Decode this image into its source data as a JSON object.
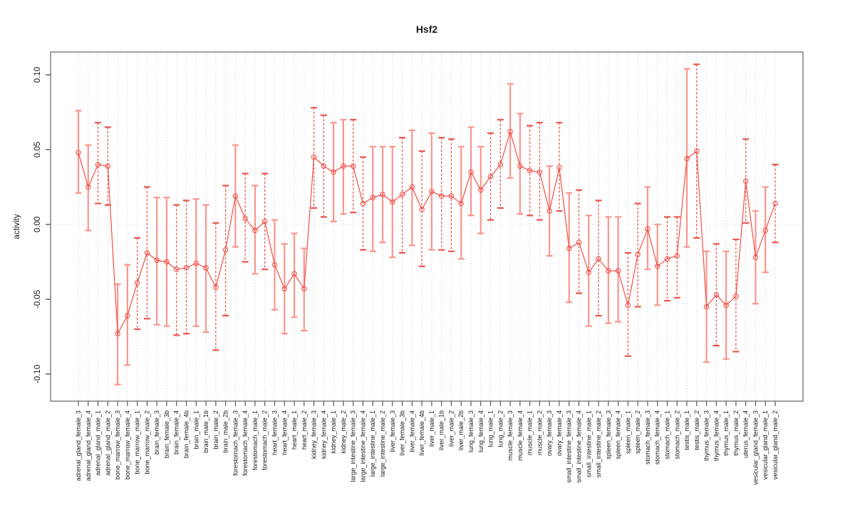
{
  "chart_data": {
    "type": "line",
    "title": "Hsf2",
    "ylabel": "activity",
    "xlabel": "",
    "ylim": [
      -0.117,
      0.115
    ],
    "yticks": [
      0.1,
      0.05,
      0.0,
      -0.05,
      -0.1
    ],
    "ytick_labels": [
      "0.10",
      "0.05",
      "0.00",
      "-0.05",
      "-0.10"
    ],
    "grid": "vertical-dotted-per-category",
    "zero_line_dotted": true,
    "legend": "none",
    "colors": {
      "point_and_line": "#ef4f48",
      "errorbar_solid": "#f9968e",
      "errorbar_dashed": "#e8564e",
      "gridline": "#cccccc",
      "zero_line": "#cfcfcf",
      "box": "#8a8a8a",
      "tick": "#4d4d4d",
      "text": "#1a1a1a",
      "background": "#ffffff"
    },
    "points": [
      {
        "label": "adrenal_gland_female_3",
        "value": 0.048,
        "lo": 0.021,
        "hi": 0.076,
        "dashed": false
      },
      {
        "label": "adrenal_gland_female_4",
        "value": 0.025,
        "lo": -0.004,
        "hi": 0.053,
        "dashed": false
      },
      {
        "label": "adrenal_gland_male_1",
        "value": 0.04,
        "lo": 0.014,
        "hi": 0.068,
        "dashed": true
      },
      {
        "label": "adrenal_gland_male_2",
        "value": 0.039,
        "lo": 0.013,
        "hi": 0.065,
        "dashed": true
      },
      {
        "label": "bone_marrow_female_3",
        "value": -0.073,
        "lo": -0.107,
        "hi": -0.04,
        "dashed": false
      },
      {
        "label": "bone_marrow_female_4",
        "value": -0.061,
        "lo": -0.094,
        "hi": -0.027,
        "dashed": false
      },
      {
        "label": "bone_marrow_male_1",
        "value": -0.039,
        "lo": -0.07,
        "hi": -0.009,
        "dashed": true
      },
      {
        "label": "bone_marrow_male_2",
        "value": -0.019,
        "lo": -0.063,
        "hi": 0.025,
        "dashed": true
      },
      {
        "label": "brain_female_3",
        "value": -0.024,
        "lo": -0.067,
        "hi": 0.018,
        "dashed": false
      },
      {
        "label": "brain_female_3b",
        "value": -0.025,
        "lo": -0.068,
        "hi": 0.018,
        "dashed": false
      },
      {
        "label": "brain_female_4",
        "value": -0.03,
        "lo": -0.074,
        "hi": 0.013,
        "dashed": true
      },
      {
        "label": "brain_female_4b",
        "value": -0.029,
        "lo": -0.073,
        "hi": 0.016,
        "dashed": true
      },
      {
        "label": "brain_male_1",
        "value": -0.026,
        "lo": -0.068,
        "hi": 0.017,
        "dashed": false
      },
      {
        "label": "brain_male_1b",
        "value": -0.029,
        "lo": -0.072,
        "hi": 0.013,
        "dashed": false
      },
      {
        "label": "brain_male_2",
        "value": -0.042,
        "lo": -0.084,
        "hi": 0.001,
        "dashed": true
      },
      {
        "label": "brain_male_2b",
        "value": -0.017,
        "lo": -0.061,
        "hi": 0.026,
        "dashed": true
      },
      {
        "label": "forestomach_female_3",
        "value": 0.019,
        "lo": -0.015,
        "hi": 0.053,
        "dashed": false
      },
      {
        "label": "forestomach_female_4",
        "value": 0.004,
        "lo": -0.025,
        "hi": 0.034,
        "dashed": true
      },
      {
        "label": "forestomach_male_1",
        "value": -0.004,
        "lo": -0.033,
        "hi": 0.026,
        "dashed": false
      },
      {
        "label": "forestomach_male_2",
        "value": 0.002,
        "lo": -0.03,
        "hi": 0.034,
        "dashed": true
      },
      {
        "label": "heart_female_3",
        "value": -0.027,
        "lo": -0.057,
        "hi": 0.003,
        "dashed": false
      },
      {
        "label": "heart_female_4",
        "value": -0.043,
        "lo": -0.073,
        "hi": -0.013,
        "dashed": false
      },
      {
        "label": "heart_male_1",
        "value": -0.033,
        "lo": -0.062,
        "hi": -0.006,
        "dashed": false
      },
      {
        "label": "heart_male_2",
        "value": -0.043,
        "lo": -0.071,
        "hi": -0.016,
        "dashed": false
      },
      {
        "label": "kidney_female_3",
        "value": 0.045,
        "lo": 0.011,
        "hi": 0.078,
        "dashed": true
      },
      {
        "label": "kidney_female_4",
        "value": 0.039,
        "lo": 0.005,
        "hi": 0.073,
        "dashed": true
      },
      {
        "label": "kidney_male_1",
        "value": 0.035,
        "lo": 0.002,
        "hi": 0.068,
        "dashed": false
      },
      {
        "label": "kidney_male_2",
        "value": 0.039,
        "lo": 0.007,
        "hi": 0.07,
        "dashed": false
      },
      {
        "label": "large_intestine_female_3",
        "value": 0.039,
        "lo": 0.008,
        "hi": 0.07,
        "dashed": true
      },
      {
        "label": "large_intestine_female_4",
        "value": 0.014,
        "lo": -0.017,
        "hi": 0.045,
        "dashed": true
      },
      {
        "label": "large_intestine_male_1",
        "value": 0.018,
        "lo": -0.018,
        "hi": 0.052,
        "dashed": false
      },
      {
        "label": "large_intestine_male_2",
        "value": 0.02,
        "lo": -0.012,
        "hi": 0.052,
        "dashed": false
      },
      {
        "label": "liver_female_3",
        "value": 0.015,
        "lo": -0.022,
        "hi": 0.052,
        "dashed": false
      },
      {
        "label": "liver_female_3b",
        "value": 0.02,
        "lo": -0.019,
        "hi": 0.058,
        "dashed": true
      },
      {
        "label": "liver_female_4",
        "value": 0.025,
        "lo": -0.014,
        "hi": 0.063,
        "dashed": false
      },
      {
        "label": "liver_female_4b",
        "value": 0.01,
        "lo": -0.028,
        "hi": 0.049,
        "dashed": true
      },
      {
        "label": "liver_male_1",
        "value": 0.022,
        "lo": -0.017,
        "hi": 0.061,
        "dashed": false
      },
      {
        "label": "liver_male_1b",
        "value": 0.019,
        "lo": -0.017,
        "hi": 0.058,
        "dashed": true
      },
      {
        "label": "liver_male_2",
        "value": 0.019,
        "lo": -0.018,
        "hi": 0.057,
        "dashed": true
      },
      {
        "label": "liver_male_2b",
        "value": 0.014,
        "lo": -0.023,
        "hi": 0.052,
        "dashed": false
      },
      {
        "label": "lung_female_3",
        "value": 0.035,
        "lo": 0.006,
        "hi": 0.065,
        "dashed": false
      },
      {
        "label": "lung_female_4",
        "value": 0.023,
        "lo": -0.006,
        "hi": 0.052,
        "dashed": false
      },
      {
        "label": "lung_male_1",
        "value": 0.032,
        "lo": 0.003,
        "hi": 0.061,
        "dashed": true
      },
      {
        "label": "lung_male_2",
        "value": 0.04,
        "lo": 0.011,
        "hi": 0.07,
        "dashed": true
      },
      {
        "label": "muscle_female_3",
        "value": 0.062,
        "lo": 0.031,
        "hi": 0.094,
        "dashed": false
      },
      {
        "label": "muscle_female_4",
        "value": 0.039,
        "lo": 0.007,
        "hi": 0.074,
        "dashed": false
      },
      {
        "label": "muscle_male_1",
        "value": 0.036,
        "lo": 0.006,
        "hi": 0.066,
        "dashed": true
      },
      {
        "label": "muscle_male_2",
        "value": 0.035,
        "lo": 0.003,
        "hi": 0.068,
        "dashed": true
      },
      {
        "label": "ovary_female_3",
        "value": 0.009,
        "lo": -0.021,
        "hi": 0.039,
        "dashed": false
      },
      {
        "label": "ovary_female_4",
        "value": 0.038,
        "lo": 0.009,
        "hi": 0.068,
        "dashed": true
      },
      {
        "label": "small_intestine_female_3",
        "value": -0.016,
        "lo": -0.052,
        "hi": 0.021,
        "dashed": false
      },
      {
        "label": "small_intestine_female_4",
        "value": -0.012,
        "lo": -0.046,
        "hi": 0.023,
        "dashed": true
      },
      {
        "label": "small_intestine_male_1",
        "value": -0.032,
        "lo": -0.068,
        "hi": 0.006,
        "dashed": false
      },
      {
        "label": "small_intestine_male_2",
        "value": -0.023,
        "lo": -0.061,
        "hi": 0.016,
        "dashed": true
      },
      {
        "label": "spleen_female_3",
        "value": -0.031,
        "lo": -0.066,
        "hi": 0.005,
        "dashed": false
      },
      {
        "label": "spleen_female_4",
        "value": -0.031,
        "lo": -0.065,
        "hi": 0.005,
        "dashed": false
      },
      {
        "label": "spleen_male_1",
        "value": -0.054,
        "lo": -0.088,
        "hi": -0.019,
        "dashed": true
      },
      {
        "label": "spleen_male_2",
        "value": -0.02,
        "lo": -0.055,
        "hi": 0.014,
        "dashed": true
      },
      {
        "label": "stomach_female_3",
        "value": -0.003,
        "lo": -0.03,
        "hi": 0.025,
        "dashed": false
      },
      {
        "label": "stomach_female_4",
        "value": -0.028,
        "lo": -0.054,
        "hi": 0.0,
        "dashed": false
      },
      {
        "label": "stomach_male_1",
        "value": -0.023,
        "lo": -0.051,
        "hi": 0.005,
        "dashed": true
      },
      {
        "label": "stomach_male_2",
        "value": -0.021,
        "lo": -0.049,
        "hi": 0.005,
        "dashed": true
      },
      {
        "label": "testis_male_1",
        "value": 0.044,
        "lo": -0.015,
        "hi": 0.104,
        "dashed": false
      },
      {
        "label": "testis_male_2",
        "value": 0.049,
        "lo": -0.009,
        "hi": 0.107,
        "dashed": true
      },
      {
        "label": "thymus_female_3",
        "value": -0.055,
        "lo": -0.092,
        "hi": -0.018,
        "dashed": false
      },
      {
        "label": "thymus_female_4",
        "value": -0.047,
        "lo": -0.081,
        "hi": -0.013,
        "dashed": true
      },
      {
        "label": "thymus_male_1",
        "value": -0.054,
        "lo": -0.09,
        "hi": -0.018,
        "dashed": false
      },
      {
        "label": "thymus_male_2",
        "value": -0.048,
        "lo": -0.085,
        "hi": -0.01,
        "dashed": true
      },
      {
        "label": "uterus_female_4",
        "value": 0.029,
        "lo": 0.001,
        "hi": 0.057,
        "dashed": true
      },
      {
        "label": "vesicular_gland_female_3",
        "value": -0.022,
        "lo": -0.053,
        "hi": 0.009,
        "dashed": false
      },
      {
        "label": "vesicular_gland_male_1",
        "value": -0.004,
        "lo": -0.032,
        "hi": 0.025,
        "dashed": false
      },
      {
        "label": "vesicular_gland_male_2",
        "value": 0.014,
        "lo": -0.012,
        "hi": 0.04,
        "dashed": true
      }
    ]
  }
}
